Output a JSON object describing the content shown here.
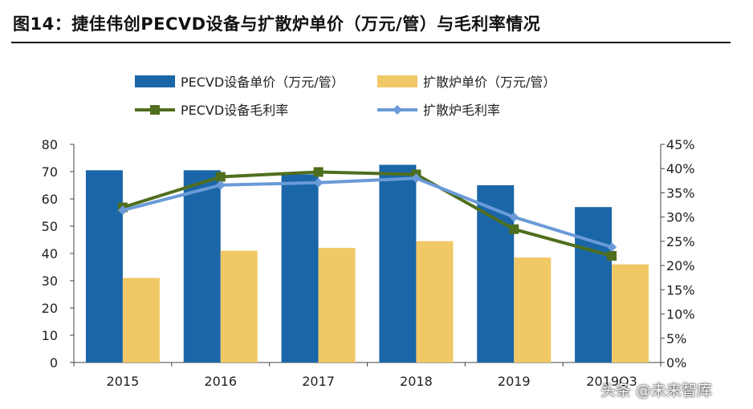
{
  "title": "图14：捷佳伟创PECVD设备与扩散炉单价（万元/管）与毛利率情况",
  "watermark": "头条 @未来智库",
  "colors": {
    "bar_pecvd": "#1a66a8",
    "bar_diffusion": "#f0c866",
    "line_pecvd": "#4f6e1e",
    "line_diffusion": "#6a9ad8"
  },
  "chart_data": {
    "type": "bar",
    "categories": [
      "2015",
      "2016",
      "2017",
      "2018",
      "2019",
      "2019Q3"
    ],
    "series": [
      {
        "name": "PECVD设备单价（万元/管）",
        "kind": "bar",
        "axis": "left",
        "values": [
          70.5,
          70.5,
          69,
          72.5,
          65,
          57
        ]
      },
      {
        "name": "扩散炉单价（万元/管）",
        "kind": "bar",
        "axis": "left",
        "values": [
          31,
          41,
          42,
          44.5,
          38.5,
          36
        ]
      },
      {
        "name": "PECVD设备毛利率",
        "kind": "line",
        "axis": "right",
        "marker": "square",
        "values": [
          32.0,
          38.3,
          39.3,
          38.8,
          27.5,
          22.0
        ]
      },
      {
        "name": "扩散炉毛利率",
        "kind": "line",
        "axis": "right",
        "marker": "diamond",
        "values": [
          31.4,
          36.6,
          37.1,
          38.0,
          30.0,
          23.8
        ]
      }
    ],
    "ylim": [
      0,
      80
    ],
    "yticks": [
      "0",
      "10",
      "20",
      "30",
      "40",
      "50",
      "60",
      "70",
      "80"
    ],
    "y2lim": [
      0,
      45
    ],
    "y2ticks": [
      "0%",
      "5%",
      "10%",
      "15%",
      "20%",
      "25%",
      "30%",
      "35%",
      "40%",
      "45%"
    ],
    "legend": "top"
  }
}
